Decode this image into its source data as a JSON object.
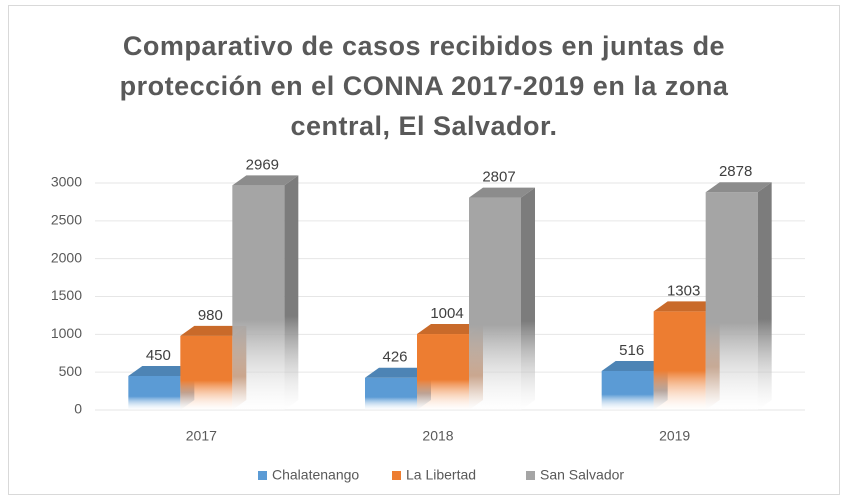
{
  "chart_data": {
    "type": "bar3d",
    "title": "Comparativo de casos recibidos en juntas de protección en el CONNA 2017-2019 en la zona central, El Salvador.",
    "categories": [
      "2017",
      "2018",
      "2019"
    ],
    "series": [
      {
        "name": "Chalatenango",
        "color": "#5b9bd5",
        "values": [
          450,
          426,
          516
        ]
      },
      {
        "name": "La Libertad",
        "color": "#ed7d31",
        "values": [
          980,
          1004,
          1303
        ]
      },
      {
        "name": "San Salvador",
        "color": "#a5a5a5",
        "values": [
          2969,
          2807,
          2878
        ]
      }
    ],
    "ylim": [
      0,
      3000
    ],
    "yticks": [
      0,
      500,
      1000,
      1500,
      2000,
      2500,
      3000
    ],
    "grid": true,
    "legend": "bottom"
  }
}
